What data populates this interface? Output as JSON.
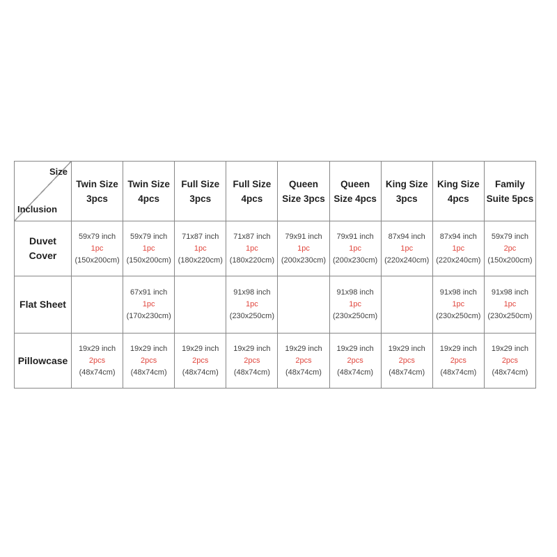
{
  "colors": {
    "background": "#ffffff",
    "border_gray": "#868686",
    "header_text": "#1f1f1f",
    "cell_text": "#3f3f3f",
    "quantity_red": "#e0453c"
  },
  "table": {
    "corner": {
      "size_label": "Size",
      "inclusion_label": "Inclusion"
    },
    "headers": [
      "Twin Size\n3pcs",
      "Twin Size\n4pcs",
      "Full Size\n3pcs",
      "Full Size\n4pcs",
      "Queen\nSize 3pcs",
      "Queen\nSize 4pcs",
      "King Size\n3pcs",
      "King Size\n4pcs",
      "Family\nSuite 5pcs"
    ],
    "rows": [
      {
        "label": "Duvet\nCover",
        "cells": [
          {
            "inch": "59x79 inch",
            "qty": "1pc",
            "cm": "(150x200cm)"
          },
          {
            "inch": "59x79 inch",
            "qty": "1pc",
            "cm": "(150x200cm)"
          },
          {
            "inch": "71x87 inch",
            "qty": "1pc",
            "cm": "(180x220cm)"
          },
          {
            "inch": "71x87 inch",
            "qty": "1pc",
            "cm": "(180x220cm)"
          },
          {
            "inch": "79x91 inch",
            "qty": "1pc",
            "cm": "(200x230cm)"
          },
          {
            "inch": "79x91 inch",
            "qty": "1pc",
            "cm": "(200x230cm)"
          },
          {
            "inch": "87x94 inch",
            "qty": "1pc",
            "cm": "(220x240cm)"
          },
          {
            "inch": "87x94 inch",
            "qty": "1pc",
            "cm": "(220x240cm)"
          },
          {
            "inch": "59x79 inch",
            "qty": "2pc",
            "cm": "(150x200cm)"
          }
        ]
      },
      {
        "label": "Flat Sheet",
        "cells": [
          {},
          {
            "inch": "67x91 inch",
            "qty": "1pc",
            "cm": "(170x230cm)"
          },
          {},
          {
            "inch": "91x98 inch",
            "qty": "1pc",
            "cm": "(230x250cm)"
          },
          {},
          {
            "inch": "91x98 inch",
            "qty": "1pc",
            "cm": "(230x250cm)"
          },
          {},
          {
            "inch": "91x98 inch",
            "qty": "1pc",
            "cm": "(230x250cm)"
          },
          {
            "inch": "91x98 inch",
            "qty": "1pc",
            "cm": "(230x250cm)"
          }
        ]
      },
      {
        "label": "Pillowcase",
        "cells": [
          {
            "inch": "19x29 inch",
            "qty": "2pcs",
            "cm": "(48x74cm)"
          },
          {
            "inch": "19x29 inch",
            "qty": "2pcs",
            "cm": "(48x74cm)"
          },
          {
            "inch": "19x29 inch",
            "qty": "2pcs",
            "cm": "(48x74cm)"
          },
          {
            "inch": "19x29 inch",
            "qty": "2pcs",
            "cm": "(48x74cm)"
          },
          {
            "inch": "19x29 inch",
            "qty": "2pcs",
            "cm": "(48x74cm)"
          },
          {
            "inch": "19x29 inch",
            "qty": "2pcs",
            "cm": "(48x74cm)"
          },
          {
            "inch": "19x29 inch",
            "qty": "2pcs",
            "cm": "(48x74cm)"
          },
          {
            "inch": "19x29 inch",
            "qty": "2pcs",
            "cm": "(48x74cm)"
          },
          {
            "inch": "19x29 inch",
            "qty": "2pcs",
            "cm": "(48x74cm)"
          }
        ]
      }
    ]
  }
}
